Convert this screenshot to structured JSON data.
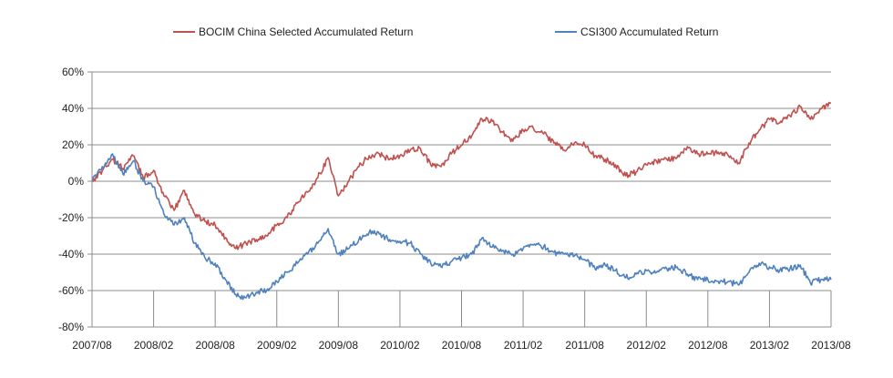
{
  "chart_data": {
    "type": "line",
    "title": "",
    "xlabel": "",
    "ylabel": "",
    "legend_position": "top",
    "grid": {
      "horizontal": true,
      "vertical": false
    },
    "ylim": [
      -80,
      60
    ],
    "y_ticks": [
      60,
      40,
      20,
      0,
      -20,
      -40,
      -60,
      -80
    ],
    "y_tick_labels": [
      "60%",
      "40%",
      "20%",
      "0%",
      "-20%",
      "-40%",
      "-60%",
      "-80%"
    ],
    "x_range": [
      "2007/08",
      "2013/08"
    ],
    "x_ticks": [
      "2007/08",
      "2008/02",
      "2008/08",
      "2009/02",
      "2009/08",
      "2010/02",
      "2010/08",
      "2011/02",
      "2011/08",
      "2012/02",
      "2012/08",
      "2013/02",
      "2013/08"
    ],
    "series": [
      {
        "name": "BOCIM China Selected Accumulated Return",
        "color": "#c0504d",
        "points": [
          [
            "2007/08",
            0
          ],
          [
            "2007/09",
            6
          ],
          [
            "2007/10",
            12
          ],
          [
            "2007/11",
            7
          ],
          [
            "2007/12",
            14
          ],
          [
            "2008/01",
            2
          ],
          [
            "2008/02",
            6
          ],
          [
            "2008/03",
            -8
          ],
          [
            "2008/04",
            -16
          ],
          [
            "2008/05",
            -5
          ],
          [
            "2008/06",
            -18
          ],
          [
            "2008/07",
            -22
          ],
          [
            "2008/08",
            -24
          ],
          [
            "2008/09",
            -31
          ],
          [
            "2008/10",
            -37
          ],
          [
            "2008/11",
            -34
          ],
          [
            "2008/12",
            -32
          ],
          [
            "2009/01",
            -30
          ],
          [
            "2009/02",
            -24
          ],
          [
            "2009/03",
            -20
          ],
          [
            "2009/04",
            -12
          ],
          [
            "2009/05",
            -6
          ],
          [
            "2009/06",
            2
          ],
          [
            "2009/07",
            13
          ],
          [
            "2009/08",
            -8
          ],
          [
            "2009/09",
            0
          ],
          [
            "2009/10",
            8
          ],
          [
            "2009/11",
            14
          ],
          [
            "2009/12",
            15
          ],
          [
            "2010/01",
            12
          ],
          [
            "2010/02",
            14
          ],
          [
            "2010/03",
            17
          ],
          [
            "2010/04",
            18
          ],
          [
            "2010/05",
            9
          ],
          [
            "2010/06",
            8
          ],
          [
            "2010/07",
            15
          ],
          [
            "2010/08",
            20
          ],
          [
            "2010/09",
            25
          ],
          [
            "2010/10",
            34
          ],
          [
            "2010/11",
            33
          ],
          [
            "2010/12",
            27
          ],
          [
            "2011/01",
            22
          ],
          [
            "2011/02",
            28
          ],
          [
            "2011/03",
            29
          ],
          [
            "2011/04",
            26
          ],
          [
            "2011/05",
            21
          ],
          [
            "2011/06",
            17
          ],
          [
            "2011/07",
            21
          ],
          [
            "2011/08",
            20
          ],
          [
            "2011/09",
            14
          ],
          [
            "2011/10",
            12
          ],
          [
            "2011/11",
            9
          ],
          [
            "2011/12",
            3
          ],
          [
            "2012/01",
            5
          ],
          [
            "2012/02",
            9
          ],
          [
            "2012/03",
            11
          ],
          [
            "2012/04",
            12
          ],
          [
            "2012/05",
            13
          ],
          [
            "2012/06",
            19
          ],
          [
            "2012/07",
            15
          ],
          [
            "2012/08",
            15
          ],
          [
            "2012/09",
            16
          ],
          [
            "2012/10",
            14
          ],
          [
            "2012/11",
            10
          ],
          [
            "2012/12",
            21
          ],
          [
            "2013/01",
            28
          ],
          [
            "2013/02",
            34
          ],
          [
            "2013/03",
            32
          ],
          [
            "2013/04",
            36
          ],
          [
            "2013/05",
            41
          ],
          [
            "2013/06",
            34
          ],
          [
            "2013/07",
            40
          ],
          [
            "2013/08",
            43
          ]
        ]
      },
      {
        "name": "CSI300 Accumulated Return",
        "color": "#4f81bd",
        "points": [
          [
            "2007/08",
            0
          ],
          [
            "2007/09",
            8
          ],
          [
            "2007/10",
            15
          ],
          [
            "2007/11",
            4
          ],
          [
            "2007/12",
            11
          ],
          [
            "2008/01",
            0
          ],
          [
            "2008/02",
            -3
          ],
          [
            "2008/03",
            -18
          ],
          [
            "2008/04",
            -24
          ],
          [
            "2008/05",
            -20
          ],
          [
            "2008/06",
            -34
          ],
          [
            "2008/07",
            -42
          ],
          [
            "2008/08",
            -45
          ],
          [
            "2008/09",
            -54
          ],
          [
            "2008/10",
            -62
          ],
          [
            "2008/11",
            -64
          ],
          [
            "2008/12",
            -61
          ],
          [
            "2009/01",
            -60
          ],
          [
            "2009/02",
            -55
          ],
          [
            "2009/03",
            -50
          ],
          [
            "2009/04",
            -45
          ],
          [
            "2009/05",
            -40
          ],
          [
            "2009/06",
            -34
          ],
          [
            "2009/07",
            -26
          ],
          [
            "2009/08",
            -40
          ],
          [
            "2009/09",
            -37
          ],
          [
            "2009/10",
            -32
          ],
          [
            "2009/11",
            -28
          ],
          [
            "2009/12",
            -29
          ],
          [
            "2010/01",
            -32
          ],
          [
            "2010/02",
            -33
          ],
          [
            "2010/03",
            -34
          ],
          [
            "2010/04",
            -40
          ],
          [
            "2010/05",
            -45
          ],
          [
            "2010/06",
            -47
          ],
          [
            "2010/07",
            -44
          ],
          [
            "2010/08",
            -42
          ],
          [
            "2010/09",
            -40
          ],
          [
            "2010/10",
            -31
          ],
          [
            "2010/11",
            -36
          ],
          [
            "2010/12",
            -38
          ],
          [
            "2011/01",
            -40
          ],
          [
            "2011/02",
            -37
          ],
          [
            "2011/03",
            -35
          ],
          [
            "2011/04",
            -36
          ],
          [
            "2011/05",
            -39
          ],
          [
            "2011/06",
            -40
          ],
          [
            "2011/07",
            -41
          ],
          [
            "2011/08",
            -43
          ],
          [
            "2011/09",
            -48
          ],
          [
            "2011/10",
            -46
          ],
          [
            "2011/11",
            -49
          ],
          [
            "2011/12",
            -53
          ],
          [
            "2012/01",
            -51
          ],
          [
            "2012/02",
            -49
          ],
          [
            "2012/03",
            -50
          ],
          [
            "2012/04",
            -48
          ],
          [
            "2012/05",
            -47
          ],
          [
            "2012/06",
            -51
          ],
          [
            "2012/07",
            -54
          ],
          [
            "2012/08",
            -54
          ],
          [
            "2012/09",
            -55
          ],
          [
            "2012/10",
            -55
          ],
          [
            "2012/11",
            -57
          ],
          [
            "2012/12",
            -50
          ],
          [
            "2013/01",
            -45
          ],
          [
            "2013/02",
            -47
          ],
          [
            "2013/03",
            -49
          ],
          [
            "2013/04",
            -48
          ],
          [
            "2013/05",
            -46
          ],
          [
            "2013/06",
            -56
          ],
          [
            "2013/07",
            -54
          ],
          [
            "2013/08",
            -54
          ]
        ]
      }
    ]
  }
}
